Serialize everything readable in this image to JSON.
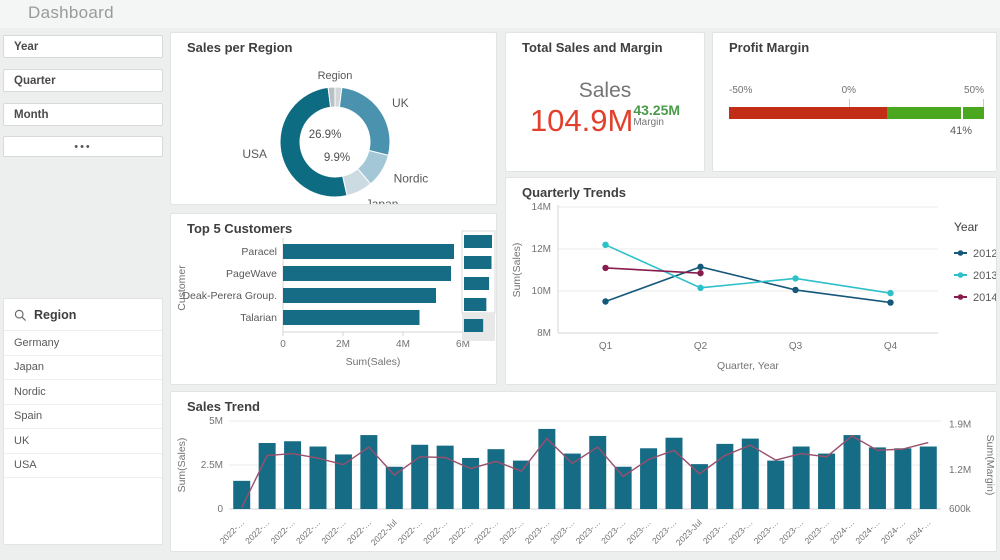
{
  "page": {
    "title": "Dashboard"
  },
  "filters": [
    {
      "label": "Year"
    },
    {
      "label": "Quarter"
    },
    {
      "label": "Month"
    }
  ],
  "more_button": {
    "label": "•••"
  },
  "region_list": {
    "title": "Region",
    "search_icon": "magnifier-icon",
    "items": [
      "Germany",
      "Japan",
      "Nordic",
      "Spain",
      "UK",
      "USA"
    ]
  },
  "chart_data": [
    {
      "id": "donut",
      "type": "pie",
      "title": "Sales per Region",
      "dimension_label": "Region",
      "slices": [
        {
          "label": "",
          "value": 2.0,
          "color": "#d2d6d8"
        },
        {
          "label": "UK",
          "value": 26.9,
          "color": "#4b92ae"
        },
        {
          "label": "Nordic",
          "value": 9.9,
          "color": "#a3c7d6"
        },
        {
          "label": "Japan",
          "value": 7.7,
          "color": "#ccdae2"
        },
        {
          "label": "USA",
          "value": 51.5,
          "color": "#0e6c82"
        },
        {
          "label": "",
          "value": 2.0,
          "color": "#b9c0c4"
        }
      ],
      "center_labels": [
        "26.9%",
        "9.9%"
      ]
    },
    {
      "id": "kpi",
      "type": "kpi",
      "title": "Total Sales and Margin",
      "primary_label": "Sales",
      "primary_value": "104.9M",
      "primary_color": "#e2402d",
      "secondary_value": "43.25M",
      "secondary_color": "#4a9b49",
      "secondary_label": "Margin"
    },
    {
      "id": "gauge",
      "type": "gauge",
      "title": "Profit Margin",
      "min": -50,
      "max": 50,
      "value": 41,
      "min_label": "-50%",
      "mid_label": "0%",
      "max_label": "50%",
      "value_label": "41%",
      "red_fraction": 0.62,
      "needle_fraction": 0.91,
      "red": "#c22d18",
      "green": "#4aa71f"
    },
    {
      "id": "quarterly",
      "type": "line",
      "title": "Quarterly Trends",
      "xlabel": "Quarter, Year",
      "ylabel": "Sum(Sales)",
      "legend_title": "Year",
      "categories": [
        "Q1",
        "Q2",
        "Q3",
        "Q4"
      ],
      "ymin": 8,
      "ymax": 14,
      "yticks": [
        {
          "v": 8,
          "label": "8M"
        },
        {
          "v": 10,
          "label": "10M"
        },
        {
          "v": 12,
          "label": "12M"
        },
        {
          "v": 14,
          "label": "14M"
        }
      ],
      "series": [
        {
          "name": "2012",
          "color": "#15587a",
          "values": [
            9.5,
            11.15,
            10.05,
            9.45
          ]
        },
        {
          "name": "2013",
          "color": "#2cc0c9",
          "values": [
            12.2,
            10.15,
            10.6,
            9.9
          ]
        },
        {
          "name": "2014",
          "color": "#871d4e",
          "values": [
            11.1,
            10.85,
            null,
            null
          ]
        }
      ]
    },
    {
      "id": "top5",
      "type": "bar",
      "title": "Top 5 Customers",
      "xlabel": "Sum(Sales)",
      "ylabel": "Customer",
      "categories": [
        "Paracel",
        "PageWave",
        "Deak-Perera Group.",
        "Talarian"
      ],
      "values": [
        5.7,
        5.6,
        5.1,
        4.55
      ],
      "xticks": [
        {
          "v": 0,
          "label": "0"
        },
        {
          "v": 2,
          "label": "2M"
        },
        {
          "v": 4,
          "label": "4M"
        },
        {
          "v": 6,
          "label": "6M"
        }
      ],
      "xmax": 6.6,
      "bar_color": "#176c85",
      "mini_values": [
        5.7,
        5.6,
        5.1,
        4.55,
        3.9
      ]
    },
    {
      "id": "trend",
      "type": "combo",
      "title": "Sales Trend",
      "ylabel_left": "Sum(Sales)",
      "ylabel_right": "Sum(Margin)",
      "yticks_left": [
        {
          "v": 0,
          "label": "0"
        },
        {
          "v": 2.5,
          "label": "2.5M"
        },
        {
          "v": 5,
          "label": "5M"
        }
      ],
      "yticks_right": [
        {
          "v": 0.6,
          "label": "600k"
        },
        {
          "v": 1.2,
          "label": "1.2M"
        },
        {
          "v": 1.9,
          "label": "1.9M"
        }
      ],
      "ymax_left": 5,
      "right_min": 0.6,
      "right_max": 1.95,
      "bar_color": "#176c85",
      "line_color": "#9a4f6c",
      "categories": [
        "2022-…",
        "2022-…",
        "2022-…",
        "2022-…",
        "2022-…",
        "2022-…",
        "2022-Jul",
        "2022-…",
        "2022-…",
        "2022-…",
        "2022-…",
        "2022-…",
        "2023-…",
        "2023-…",
        "2023-…",
        "2023-…",
        "2023-…",
        "2023-…",
        "2023-Jul",
        "2023-…",
        "2023-…",
        "2023-…",
        "2023-…",
        "2023-…",
        "2024-…",
        "2024-…",
        "2024-…",
        "2024-…"
      ],
      "bars": [
        1.6,
        3.75,
        3.85,
        3.55,
        3.1,
        4.2,
        2.4,
        3.65,
        3.6,
        2.9,
        3.4,
        2.75,
        4.55,
        3.15,
        4.15,
        2.4,
        3.45,
        4.05,
        2.55,
        3.7,
        4.0,
        2.75,
        3.55,
        3.15,
        4.2,
        3.5,
        3.45,
        3.55
      ],
      "line": [
        0.62,
        1.42,
        1.45,
        1.38,
        1.28,
        1.55,
        1.12,
        1.4,
        1.39,
        1.22,
        1.33,
        1.18,
        1.68,
        1.3,
        1.55,
        1.1,
        1.36,
        1.5,
        1.14,
        1.42,
        1.58,
        1.35,
        1.45,
        1.4,
        1.72,
        1.5,
        1.52,
        1.62
      ]
    }
  ]
}
